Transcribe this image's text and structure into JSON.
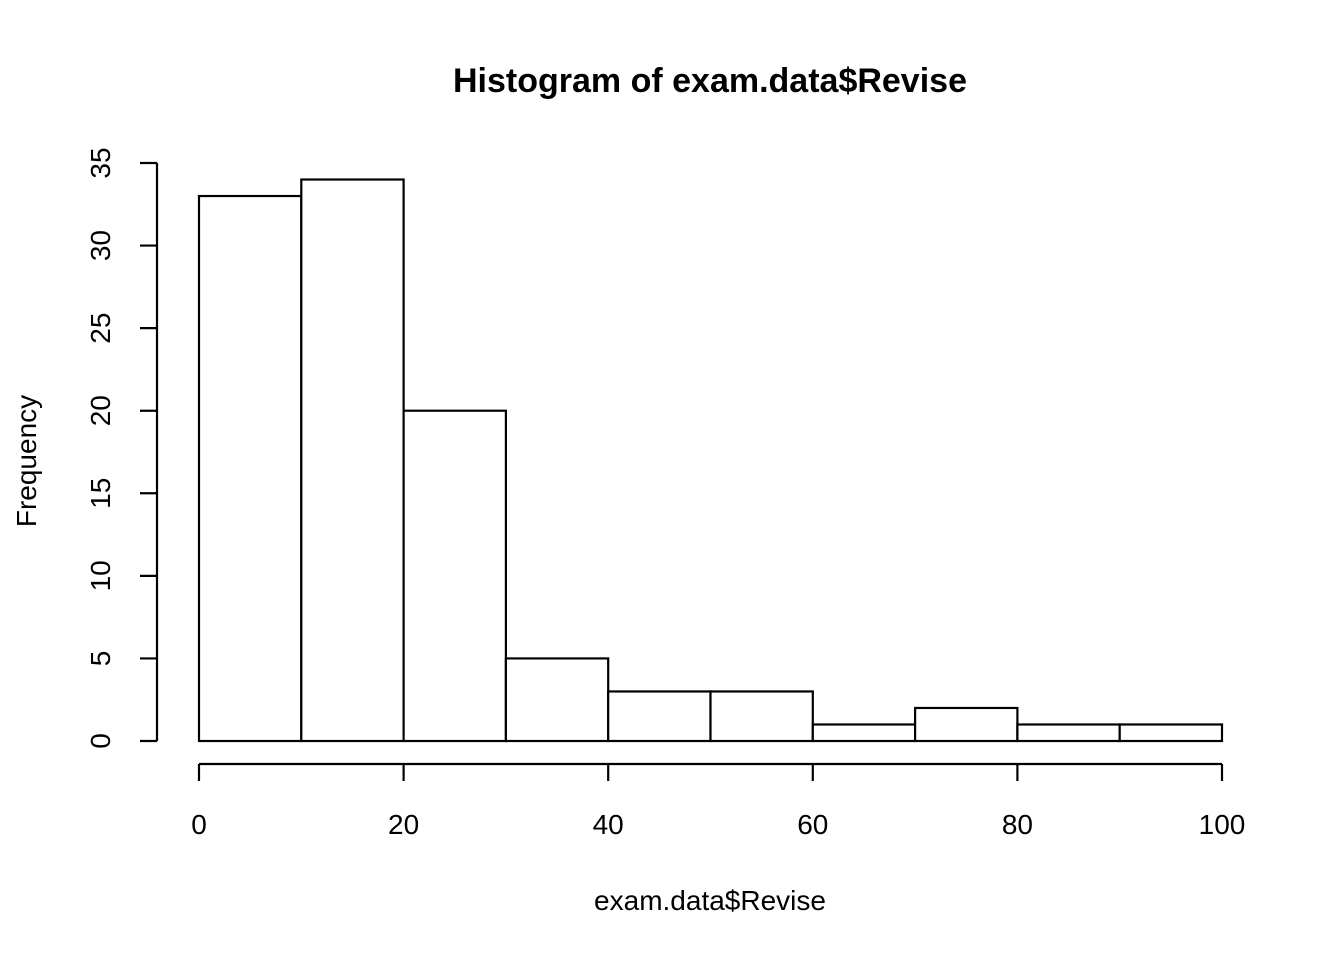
{
  "chart_data": {
    "type": "bar",
    "title": "Histogram of exam.data$Revise",
    "xlabel": "exam.data$Revise",
    "ylabel": "Frequency",
    "bins": [
      {
        "from": 0,
        "to": 10,
        "count": 33
      },
      {
        "from": 10,
        "to": 20,
        "count": 34
      },
      {
        "from": 20,
        "to": 30,
        "count": 20
      },
      {
        "from": 30,
        "to": 40,
        "count": 5
      },
      {
        "from": 40,
        "to": 50,
        "count": 3
      },
      {
        "from": 50,
        "to": 60,
        "count": 3
      },
      {
        "from": 60,
        "to": 70,
        "count": 1
      },
      {
        "from": 70,
        "to": 80,
        "count": 2
      },
      {
        "from": 80,
        "to": 90,
        "count": 1
      },
      {
        "from": 90,
        "to": 100,
        "count": 1
      }
    ],
    "xlim": [
      0,
      100
    ],
    "ylim": [
      0,
      35
    ],
    "x_ticks": [
      "0",
      "20",
      "40",
      "60",
      "80",
      "100"
    ],
    "y_ticks": [
      "0",
      "5",
      "10",
      "15",
      "20",
      "25",
      "30",
      "35"
    ],
    "grid": false,
    "legend": "none",
    "bar_fill": "#ffffff",
    "bar_stroke": "#000000"
  }
}
